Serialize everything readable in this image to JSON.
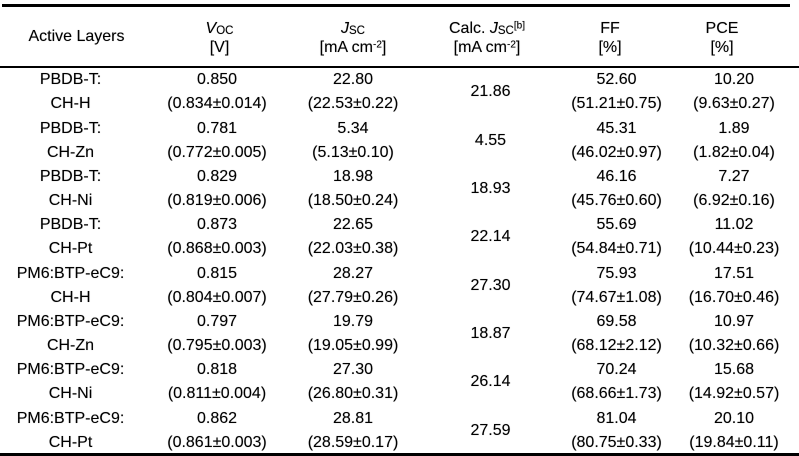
{
  "page": {
    "background": "#ffffff",
    "text_color": "#000000",
    "rule_color": "#000000"
  },
  "table": {
    "header": {
      "active_layers": {
        "label": "Active Layers"
      },
      "voc": {
        "symbol": "V",
        "symbol_sub": "OC",
        "unit": "[V]"
      },
      "jsc": {
        "symbol": "J",
        "symbol_sub": "SC",
        "unit_open": "[mA cm",
        "unit_sup": "-2",
        "unit_close": "]"
      },
      "calc_jsc": {
        "prefix": "Calc. ",
        "symbol": "J",
        "symbol_sub": "SC",
        "symbol_sup": "[b]",
        "unit_open": "[mA cm",
        "unit_sup": "-2",
        "unit_close": "]"
      },
      "ff": {
        "label": "FF",
        "unit": "[%]"
      },
      "pce": {
        "label": "PCE",
        "unit": "[%]"
      }
    },
    "rows": [
      {
        "layer1": "PBDB-T:",
        "layer2": "CH-H",
        "voc": "0.850",
        "voc_stat": "(0.834±0.014)",
        "jsc": "22.80",
        "jsc_stat": "(22.53±0.22)",
        "calc_jsc": "21.86",
        "ff": "52.60",
        "ff_stat": "(51.21±0.75)",
        "pce": "10.20",
        "pce_stat": "(9.63±0.27)"
      },
      {
        "layer1": "PBDB-T:",
        "layer2": "CH-Zn",
        "voc": "0.781",
        "voc_stat": "(0.772±0.005)",
        "jsc": "5.34",
        "jsc_stat": "(5.13±0.10)",
        "calc_jsc": "4.55",
        "ff": "45.31",
        "ff_stat": "(46.02±0.97)",
        "pce": "1.89",
        "pce_stat": "(1.82±0.04)"
      },
      {
        "layer1": "PBDB-T:",
        "layer2": "CH-Ni",
        "voc": "0.829",
        "voc_stat": "(0.819±0.006)",
        "jsc": "18.98",
        "jsc_stat": "(18.50±0.24)",
        "calc_jsc": "18.93",
        "ff": "46.16",
        "ff_stat": "(45.76±0.60)",
        "pce": "7.27",
        "pce_stat": "(6.92±0.16)"
      },
      {
        "layer1": "PBDB-T:",
        "layer2": "CH-Pt",
        "voc": "0.873",
        "voc_stat": "(0.868±0.003)",
        "jsc": "22.65",
        "jsc_stat": "(22.03±0.38)",
        "calc_jsc": "22.14",
        "ff": "55.69",
        "ff_stat": "(54.84±0.71)",
        "pce": "11.02",
        "pce_stat": "(10.44±0.23)"
      },
      {
        "layer1": "PM6:BTP-eC9:",
        "layer2": "CH-H",
        "voc": "0.815",
        "voc_stat": "(0.804±0.007)",
        "jsc": "28.27",
        "jsc_stat": "(27.79±0.26)",
        "calc_jsc": "27.30",
        "ff": "75.93",
        "ff_stat": "(74.67±1.08)",
        "pce": "17.51",
        "pce_stat": "(16.70±0.46)"
      },
      {
        "layer1": "PM6:BTP-eC9:",
        "layer2": "CH-Zn",
        "voc": "0.797",
        "voc_stat": "(0.795±0.003)",
        "jsc": "19.79",
        "jsc_stat": "(19.05±0.99)",
        "calc_jsc": "18.87",
        "ff": "69.58",
        "ff_stat": "(68.12±2.12)",
        "pce": "10.97",
        "pce_stat": "(10.32±0.66)"
      },
      {
        "layer1": "PM6:BTP-eC9:",
        "layer2": "CH-Ni",
        "voc": "0.818",
        "voc_stat": "(0.811±0.004)",
        "jsc": "27.30",
        "jsc_stat": "(26.80±0.31)",
        "calc_jsc": "26.14",
        "ff": "70.24",
        "ff_stat": "(68.66±1.73)",
        "pce": "15.68",
        "pce_stat": "(14.92±0.57)"
      },
      {
        "layer1": "PM6:BTP-eC9:",
        "layer2": "CH-Pt",
        "voc": "0.862",
        "voc_stat": "(0.861±0.003)",
        "jsc": "28.81",
        "jsc_stat": "(28.59±0.17)",
        "calc_jsc": "27.59",
        "ff": "81.04",
        "ff_stat": "(80.75±0.33)",
        "pce": "20.10",
        "pce_stat": "(19.84±0.11)"
      }
    ]
  }
}
